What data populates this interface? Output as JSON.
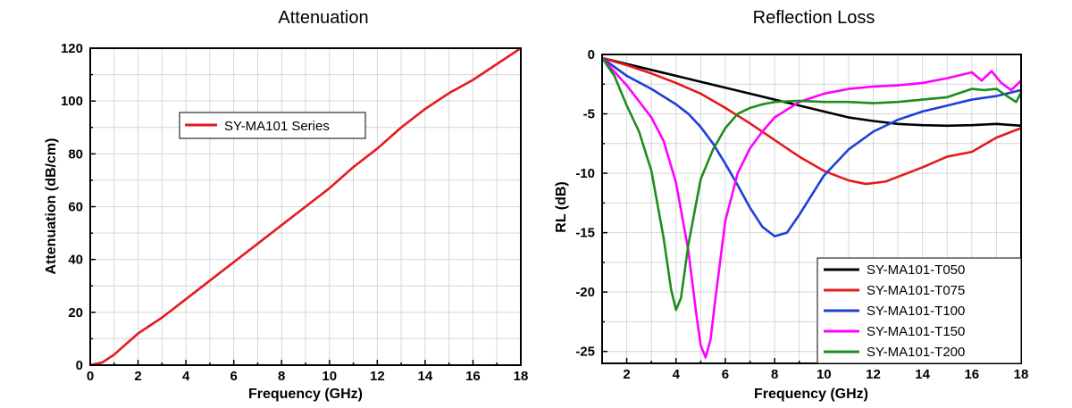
{
  "chart_data": [
    {
      "type": "line",
      "title": "Attenuation",
      "xlabel": "Frequency (GHz)",
      "ylabel": "Attenuation (dB/cm)",
      "xlim": [
        0,
        18
      ],
      "ylim": [
        0,
        120
      ],
      "xticks": [
        0,
        2,
        4,
        6,
        8,
        10,
        12,
        14,
        16,
        18
      ],
      "yticks": [
        0,
        20,
        40,
        60,
        80,
        100,
        120
      ],
      "grid": true,
      "legend_position": "top-center",
      "series": [
        {
          "name": "SY-MA101 Series",
          "color": "#e41a1c",
          "x": [
            0,
            0.5,
            1,
            1.5,
            2,
            3,
            4,
            5,
            6,
            7,
            8,
            9,
            10,
            11,
            12,
            13,
            14,
            15,
            16,
            17,
            18
          ],
          "y": [
            0,
            1,
            4,
            8,
            12,
            18,
            25,
            32,
            39,
            46,
            53,
            60,
            67,
            75,
            82,
            90,
            97,
            103,
            108,
            114,
            120
          ]
        }
      ]
    },
    {
      "type": "line",
      "title": "Reflection Loss",
      "xlabel": "Frequency (GHz)",
      "ylabel": "RL (dB)",
      "xlim": [
        1,
        18
      ],
      "ylim": [
        -26,
        0
      ],
      "xticks": [
        2,
        4,
        6,
        8,
        10,
        12,
        14,
        16,
        18
      ],
      "yticks": [
        0,
        -5,
        -10,
        -15,
        -20,
        -25
      ],
      "grid": true,
      "legend_position": "bottom-right",
      "series": [
        {
          "name": "SY-MA101-T050",
          "color": "#000000",
          "x": [
            1,
            2,
            3,
            4,
            5,
            6,
            7,
            8,
            9,
            10,
            11,
            12,
            13,
            14,
            15,
            16,
            17,
            18
          ],
          "y": [
            -0.3,
            -0.8,
            -1.3,
            -1.8,
            -2.3,
            -2.8,
            -3.3,
            -3.8,
            -4.3,
            -4.8,
            -5.3,
            -5.6,
            -5.85,
            -5.95,
            -6.0,
            -5.95,
            -5.85,
            -6.0
          ]
        },
        {
          "name": "SY-MA101-T075",
          "color": "#e41a1c",
          "x": [
            1,
            2,
            3,
            4,
            5,
            6,
            7,
            8,
            9,
            10,
            11,
            11.7,
            12.5,
            13,
            14,
            15,
            16,
            17,
            18
          ],
          "y": [
            -0.3,
            -0.9,
            -1.6,
            -2.4,
            -3.3,
            -4.5,
            -5.8,
            -7.2,
            -8.6,
            -9.8,
            -10.6,
            -10.9,
            -10.7,
            -10.3,
            -9.5,
            -8.6,
            -8.2,
            -7.0,
            -6.2
          ]
        },
        {
          "name": "SY-MA101-T100",
          "color": "#1f3fd6",
          "x": [
            1,
            2,
            3,
            4,
            4.5,
            5,
            5.5,
            6,
            6.5,
            7,
            7.5,
            8,
            8.5,
            9,
            10,
            11,
            12,
            13,
            14,
            15,
            16,
            17,
            18
          ],
          "y": [
            -0.3,
            -1.8,
            -2.9,
            -4.2,
            -5.0,
            -6.1,
            -7.5,
            -9.2,
            -11.0,
            -12.9,
            -14.5,
            -15.3,
            -15.0,
            -13.5,
            -10.2,
            -8.0,
            -6.5,
            -5.5,
            -4.8,
            -4.3,
            -3.8,
            -3.5,
            -3.0
          ]
        },
        {
          "name": "SY-MA101-T150",
          "color": "#ff00ff",
          "x": [
            1,
            2,
            3,
            3.5,
            4,
            4.5,
            4.8,
            5,
            5.2,
            5.4,
            5.6,
            6,
            6.5,
            7,
            7.5,
            8,
            9,
            10,
            11,
            12,
            13,
            14,
            15,
            16,
            16.4,
            16.8,
            17.2,
            17.6,
            18
          ],
          "y": [
            -0.3,
            -2.6,
            -5.3,
            -7.3,
            -10.8,
            -16.5,
            -21.5,
            -24.5,
            -25.5,
            -24.0,
            -20.5,
            -14.0,
            -10.0,
            -7.9,
            -6.5,
            -5.3,
            -4.0,
            -3.3,
            -2.9,
            -2.7,
            -2.6,
            -2.4,
            -2.0,
            -1.5,
            -2.2,
            -1.4,
            -2.4,
            -3.0,
            -2.2
          ]
        },
        {
          "name": "SY-MA101-T200",
          "color": "#1e8c1e",
          "x": [
            1,
            1.5,
            2,
            2.5,
            3,
            3.5,
            3.8,
            4,
            4.2,
            4.5,
            5,
            5.5,
            6,
            6.5,
            7,
            7.5,
            8,
            9,
            10,
            11,
            12,
            13,
            14,
            15,
            16,
            16.5,
            17,
            17.5,
            17.8,
            18
          ],
          "y": [
            -0.3,
            -1.8,
            -4.3,
            -6.5,
            -9.8,
            -15.5,
            -19.8,
            -21.5,
            -20.5,
            -16.0,
            -10.5,
            -8.0,
            -6.2,
            -5.0,
            -4.5,
            -4.2,
            -4.0,
            -3.9,
            -4.0,
            -4.0,
            -4.1,
            -4.0,
            -3.8,
            -3.6,
            -2.9,
            -3.0,
            -2.9,
            -3.6,
            -4.0,
            -3.2
          ]
        }
      ]
    }
  ]
}
